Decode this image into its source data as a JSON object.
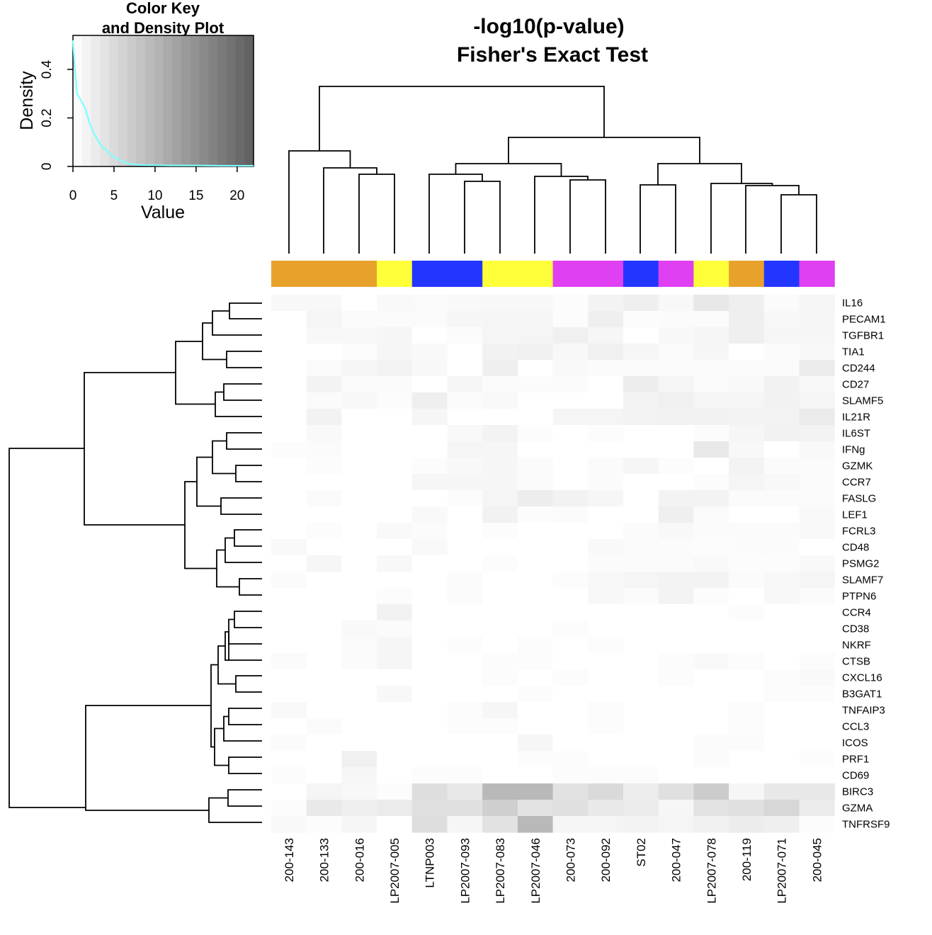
{
  "chart_data": {
    "type": "heatmap",
    "title_line1": "-log10(p-value)",
    "title_line2": "Fisher's Exact Test",
    "columns": [
      "200-143",
      "200-133",
      "200-016",
      "LP2007-005",
      "LTNP003",
      "LP2007-093",
      "LP2007-083",
      "LP2007-046",
      "200-073",
      "200-092",
      "ST02",
      "200-047",
      "LP2007-078",
      "200-119",
      "LP2007-071",
      "200-045"
    ],
    "column_group_colors": [
      "#E8A22C",
      "#E8A22C",
      "#E8A22C",
      "#FFFF3A",
      "#2236FF",
      "#2236FF",
      "#FFFF3A",
      "#FFFF3A",
      "#DF40F2",
      "#DF40F2",
      "#2236FF",
      "#DF40F2",
      "#FFFF3A",
      "#E8A22C",
      "#2236FF",
      "#DF40F2"
    ],
    "rows": [
      "IL16",
      "PECAM1",
      "TGFBR1",
      "TIA1",
      "CD244",
      "CD27",
      "SLAMF5",
      "IL21R",
      "IL6ST",
      "IFNg",
      "GZMK",
      "CCR7",
      "FASLG",
      "LEF1",
      "FCRL3",
      "CD48",
      "PSMG2",
      "SLAMF7",
      "PTPN6",
      "CCR4",
      "CD38",
      "NKRF",
      "CTSB",
      "CXCL16",
      "B3GAT1",
      "TNFAIP3",
      "CCL3",
      "ICOS",
      "PRF1",
      "CD69",
      "BIRC3",
      "GZMA",
      "TNFRSF9"
    ],
    "values": [
      [
        1.0,
        1.0,
        0.0,
        0.8,
        0.7,
        0.8,
        1.0,
        1.0,
        0.4,
        1.6,
        2.2,
        1.0,
        3.2,
        2.2,
        0.6,
        1.4
      ],
      [
        0.0,
        1.4,
        0.6,
        0.6,
        0.6,
        1.2,
        1.4,
        1.4,
        0.4,
        2.2,
        0.4,
        0.6,
        0.6,
        2.2,
        1.0,
        1.2
      ],
      [
        0.0,
        1.0,
        1.0,
        1.2,
        0.0,
        0.6,
        1.4,
        1.4,
        2.0,
        1.2,
        0.0,
        1.0,
        1.2,
        2.2,
        1.2,
        1.2
      ],
      [
        0.0,
        0.0,
        0.4,
        1.2,
        0.8,
        0.0,
        1.8,
        2.0,
        1.0,
        2.0,
        1.2,
        0.6,
        1.2,
        0.0,
        0.6,
        1.0
      ],
      [
        0.0,
        0.6,
        1.2,
        1.6,
        1.0,
        0.0,
        2.2,
        0.0,
        0.8,
        0.6,
        0.6,
        0.6,
        0.6,
        0.6,
        0.6,
        2.6
      ],
      [
        0.0,
        1.6,
        0.6,
        0.6,
        0.0,
        1.4,
        0.6,
        0.6,
        0.6,
        0.0,
        2.4,
        1.4,
        0.6,
        0.8,
        1.8,
        1.0
      ],
      [
        0.0,
        0.6,
        1.0,
        0.4,
        2.2,
        0.6,
        0.8,
        0.0,
        0.0,
        0.0,
        1.6,
        2.0,
        1.4,
        1.4,
        1.8,
        1.4
      ],
      [
        0.0,
        1.8,
        0.0,
        0.0,
        1.2,
        0.0,
        0.0,
        0.0,
        1.4,
        1.4,
        1.6,
        1.8,
        1.8,
        1.6,
        1.6,
        2.8
      ],
      [
        0.0,
        0.8,
        0.0,
        0.0,
        0.0,
        0.8,
        1.6,
        0.4,
        0.0,
        0.4,
        0.0,
        0.0,
        0.4,
        1.2,
        1.8,
        1.6
      ],
      [
        0.4,
        0.6,
        0.0,
        0.0,
        0.0,
        1.4,
        1.2,
        0.0,
        0.0,
        0.0,
        0.0,
        0.0,
        3.0,
        1.0,
        0.0,
        0.8
      ],
      [
        0.0,
        0.4,
        0.0,
        0.0,
        0.4,
        1.0,
        1.2,
        0.6,
        0.0,
        0.6,
        1.2,
        0.4,
        0.0,
        1.6,
        0.6,
        0.6
      ],
      [
        0.0,
        0.0,
        0.0,
        0.0,
        1.2,
        1.2,
        1.2,
        0.6,
        0.0,
        0.6,
        0.0,
        0.0,
        0.4,
        1.4,
        1.0,
        0.6
      ],
      [
        0.0,
        0.6,
        0.0,
        0.0,
        0.0,
        0.4,
        1.4,
        2.4,
        1.8,
        1.2,
        0.0,
        1.6,
        1.6,
        0.6,
        0.6,
        0.6
      ],
      [
        0.0,
        0.0,
        0.0,
        0.0,
        0.8,
        0.0,
        1.8,
        0.4,
        0.6,
        0.0,
        0.0,
        2.2,
        0.6,
        0.0,
        0.0,
        0.8
      ],
      [
        0.0,
        0.4,
        0.0,
        0.8,
        0.6,
        0.0,
        0.4,
        0.0,
        0.0,
        0.0,
        0.6,
        1.0,
        0.6,
        0.6,
        0.6,
        0.8
      ],
      [
        0.8,
        0.0,
        0.0,
        0.0,
        0.8,
        0.0,
        0.0,
        0.0,
        0.0,
        0.8,
        0.6,
        0.6,
        0.4,
        0.6,
        0.6,
        0.0
      ],
      [
        0.0,
        1.2,
        0.0,
        1.0,
        0.0,
        0.0,
        0.4,
        0.0,
        0.0,
        0.6,
        0.6,
        0.6,
        0.8,
        0.4,
        0.4,
        0.8
      ],
      [
        0.6,
        0.0,
        0.0,
        0.0,
        0.0,
        0.6,
        0.0,
        0.0,
        0.4,
        1.0,
        1.4,
        1.6,
        1.6,
        0.6,
        1.0,
        1.4
      ],
      [
        0.0,
        0.0,
        0.0,
        0.4,
        0.0,
        0.6,
        0.0,
        0.0,
        0.0,
        1.0,
        0.6,
        1.6,
        0.4,
        0.0,
        1.0,
        0.6
      ],
      [
        0.0,
        0.0,
        0.0,
        1.8,
        0.0,
        0.0,
        0.0,
        0.0,
        0.0,
        0.0,
        0.0,
        0.0,
        0.0,
        0.4,
        0.0,
        0.0
      ],
      [
        0.0,
        0.0,
        0.8,
        0.6,
        0.0,
        0.0,
        0.0,
        0.0,
        0.4,
        0.0,
        0.0,
        0.0,
        0.0,
        0.0,
        0.0,
        0.0
      ],
      [
        0.0,
        0.0,
        0.6,
        1.2,
        0.0,
        0.4,
        0.0,
        0.4,
        0.0,
        0.4,
        0.0,
        0.0,
        0.0,
        0.0,
        0.0,
        0.0
      ],
      [
        0.6,
        0.0,
        0.6,
        1.2,
        0.0,
        0.0,
        0.4,
        0.4,
        0.0,
        0.0,
        0.0,
        0.4,
        0.8,
        0.4,
        0.0,
        0.4
      ],
      [
        0.0,
        0.0,
        0.0,
        0.0,
        0.0,
        0.0,
        0.4,
        0.0,
        0.4,
        0.0,
        0.0,
        0.4,
        0.0,
        0.0,
        0.4,
        0.8
      ],
      [
        0.0,
        0.0,
        0.0,
        1.0,
        0.0,
        0.0,
        0.0,
        0.4,
        0.0,
        0.0,
        0.0,
        0.0,
        0.0,
        0.0,
        0.4,
        0.4
      ],
      [
        0.8,
        0.0,
        0.0,
        0.0,
        0.0,
        0.4,
        1.2,
        0.0,
        0.0,
        0.4,
        0.0,
        0.0,
        0.0,
        0.4,
        0.0,
        0.0
      ],
      [
        0.0,
        0.6,
        0.0,
        0.0,
        0.0,
        0.4,
        0.4,
        0.0,
        0.0,
        0.4,
        0.0,
        0.0,
        0.0,
        0.4,
        0.0,
        0.0
      ],
      [
        0.6,
        0.0,
        0.0,
        0.0,
        0.0,
        0.0,
        0.0,
        1.2,
        0.0,
        0.0,
        0.0,
        0.0,
        0.6,
        0.6,
        0.0,
        0.0
      ],
      [
        0.0,
        0.0,
        2.0,
        0.0,
        0.0,
        0.0,
        0.0,
        0.4,
        0.4,
        0.0,
        0.0,
        0.0,
        0.6,
        0.0,
        0.0,
        0.4
      ],
      [
        0.4,
        0.0,
        1.2,
        0.0,
        0.4,
        0.4,
        0.0,
        0.0,
        0.4,
        0.4,
        0.4,
        0.0,
        0.0,
        0.0,
        0.0,
        0.0
      ],
      [
        0.0,
        1.4,
        1.0,
        0.4,
        4.5,
        3.2,
        9.5,
        9.5,
        4.0,
        5.0,
        2.4,
        4.2,
        7.0,
        1.2,
        3.2,
        3.2
      ],
      [
        0.4,
        3.0,
        2.2,
        2.8,
        4.2,
        4.2,
        6.5,
        3.8,
        4.2,
        3.0,
        2.8,
        1.2,
        4.0,
        4.2,
        5.5,
        2.8
      ],
      [
        0.8,
        0.4,
        1.2,
        0.0,
        4.5,
        1.2,
        4.0,
        9.5,
        1.4,
        1.4,
        1.6,
        1.4,
        2.0,
        2.6,
        2.2,
        0.4
      ]
    ],
    "value_range": [
      0,
      22
    ],
    "color_scale": [
      "#FFFFFF",
      "#5E5E5E"
    ],
    "color_key": {
      "title_line1": "Color Key",
      "title_line2": "and Density Plot",
      "xlabel": "Value",
      "ylabel": "Density",
      "x_ticks": [
        "0",
        "5",
        "10",
        "15",
        "20"
      ],
      "y_ticks": [
        "0",
        "0.2",
        "0.4"
      ],
      "density_color": "#7FFFFF",
      "density_x": [
        0,
        0.2,
        0.5,
        1,
        1.5,
        2,
        2.5,
        3,
        3.5,
        4,
        4.5,
        5,
        5.5,
        6,
        7,
        8,
        10,
        12,
        15,
        18,
        22
      ],
      "density_y": [
        0.52,
        0.42,
        0.3,
        0.27,
        0.24,
        0.18,
        0.14,
        0.11,
        0.08,
        0.07,
        0.05,
        0.04,
        0.03,
        0.02,
        0.01,
        0.006,
        0.005,
        0.004,
        0.004,
        0.003,
        0.003
      ]
    }
  }
}
